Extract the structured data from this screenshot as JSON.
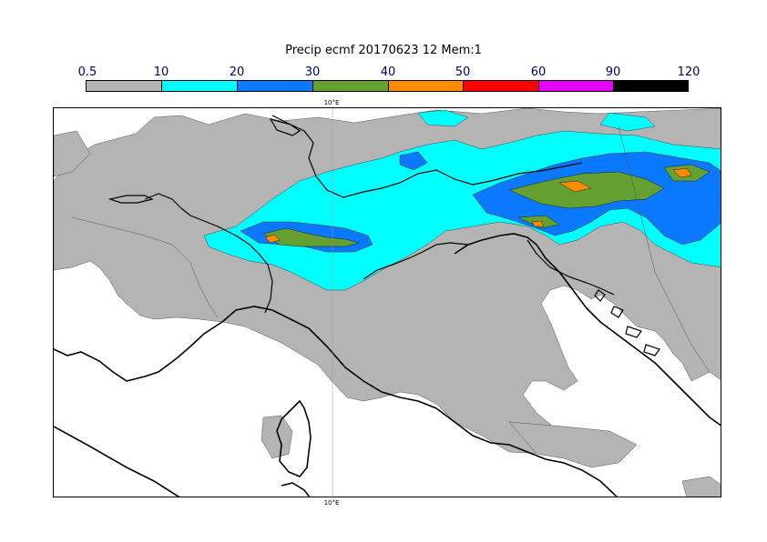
{
  "title": "Precip ecmf 20170623 12 Mem:1",
  "legend": {
    "labels": [
      "0.5",
      "10",
      "20",
      "30",
      "40",
      "50",
      "60",
      "90",
      "120"
    ],
    "colors": [
      "#b4b4b4",
      "#00ffff",
      "#0a78ff",
      "#64a032",
      "#ff8c00",
      "#ff0000",
      "#e600ff",
      "#000000"
    ]
  },
  "map": {
    "longitude_label_top": "10°E",
    "longitude_label_bottom": "10°E"
  }
}
